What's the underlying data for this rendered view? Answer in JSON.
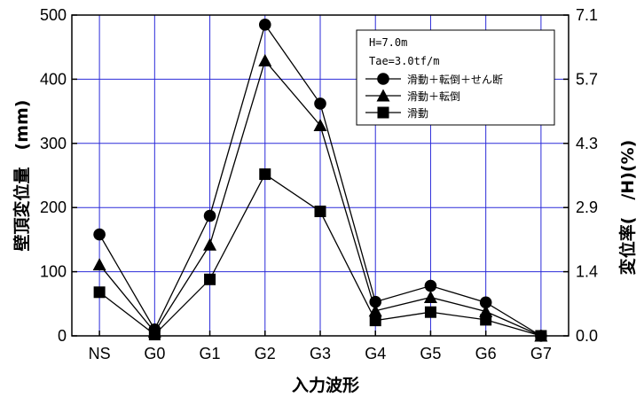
{
  "chart_data": {
    "type": "line",
    "categories": [
      "NS",
      "G0",
      "G1",
      "G2",
      "G3",
      "G4",
      "G5",
      "G6",
      "G7"
    ],
    "xlabel": "入力波形",
    "ylabel": "壁頂変位量　(mm)",
    "y2label": "変位率(　/H)(%)",
    "ylim": [
      0,
      500
    ],
    "y_ticks": [
      0,
      100,
      200,
      300,
      400,
      500
    ],
    "y2_ticks": [
      "0.0",
      "1.4",
      "2.9",
      "4.3",
      "5.7",
      "7.1"
    ],
    "grid": true,
    "grid_color": "#2b2bd9",
    "legend_position": "top-right",
    "legend_header": [
      "H=7.0m",
      "Tae=3.0tf/m"
    ],
    "series": [
      {
        "name": "滑動＋転倒＋せん断",
        "marker": "circle",
        "values": [
          158,
          10,
          187,
          485,
          362,
          53,
          78,
          52,
          0
        ]
      },
      {
        "name": "滑動＋転倒",
        "marker": "triangle",
        "values": [
          111,
          6,
          142,
          429,
          328,
          39,
          60,
          38,
          0
        ]
      },
      {
        "name": "滑動",
        "marker": "square",
        "values": [
          68,
          2,
          88,
          252,
          194,
          24,
          37,
          25,
          0
        ]
      }
    ]
  }
}
